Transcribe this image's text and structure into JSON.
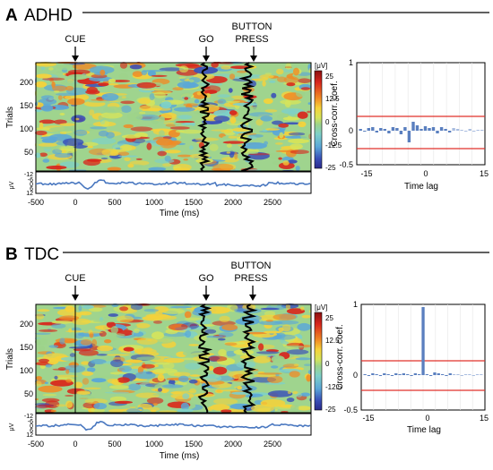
{
  "figure": {
    "panels": [
      {
        "letter": "A",
        "group": "ADHD",
        "events": {
          "cue": "CUE",
          "go": "GO",
          "button": [
            "BUTTON",
            "PRESS"
          ]
        },
        "heatmap": {
          "ylabel": "Trials",
          "yticks": [
            "200",
            "150",
            "100",
            "50"
          ],
          "colorbar": {
            "unit": "[μV]",
            "ticks": [
              "25",
              "12.5",
              "0",
              "-12.5",
              "-25"
            ]
          }
        },
        "erp": {
          "ylabel": "μV",
          "yticks": [
            "-12",
            "-6",
            "0",
            "6",
            "12"
          ],
          "xlabel": "Time (ms)"
        },
        "xticks": [
          "-500",
          "0",
          "500",
          "1000",
          "1500",
          "2000",
          "2500"
        ],
        "xcorr": {
          "ylabel": "Cross-corr. coef.",
          "xlabel": "Time lag",
          "yticks": [
            "1",
            "0",
            "-0.5"
          ],
          "xticks": [
            "-15",
            "0",
            "15"
          ]
        }
      },
      {
        "letter": "B",
        "group": "TDC",
        "events": {
          "cue": "CUE",
          "go": "GO",
          "button": [
            "BUTTON",
            "PRESS"
          ]
        },
        "heatmap": {
          "ylabel": "Trials",
          "yticks": [
            "200",
            "150",
            "100",
            "50"
          ],
          "colorbar": {
            "unit": "[μV]",
            "ticks": [
              "25",
              "12.5",
              "0",
              "-12.5",
              "-25"
            ]
          }
        },
        "erp": {
          "ylabel": "μV",
          "yticks": [
            "-12",
            "-6",
            "0",
            "6",
            "12"
          ],
          "xlabel": "Time (ms)"
        },
        "xticks": [
          "-500",
          "0",
          "500",
          "1000",
          "1500",
          "2000",
          "2500"
        ],
        "xcorr": {
          "ylabel": "Cross-corr. coef.",
          "xlabel": "Time lag",
          "yticks": [
            "1",
            "0",
            "-0.5"
          ],
          "xticks": [
            "-15",
            "0",
            "15"
          ]
        }
      }
    ]
  },
  "colors": {
    "seismic": [
      "#2a2a8c",
      "#3a4fb8",
      "#5aa7d8",
      "#7ed0c8",
      "#9dd38a",
      "#d6e45a",
      "#f5d23a",
      "#f08a25",
      "#d8261c",
      "#8a1010"
    ],
    "background_heat": "#9fd48e",
    "rt_line": "#000000",
    "erp_line": "#4a78c0",
    "xcorr_bar": "#5a7fbf",
    "xcorr_bar_light": "#a9bde0",
    "threshold": "#e0302a"
  }
}
